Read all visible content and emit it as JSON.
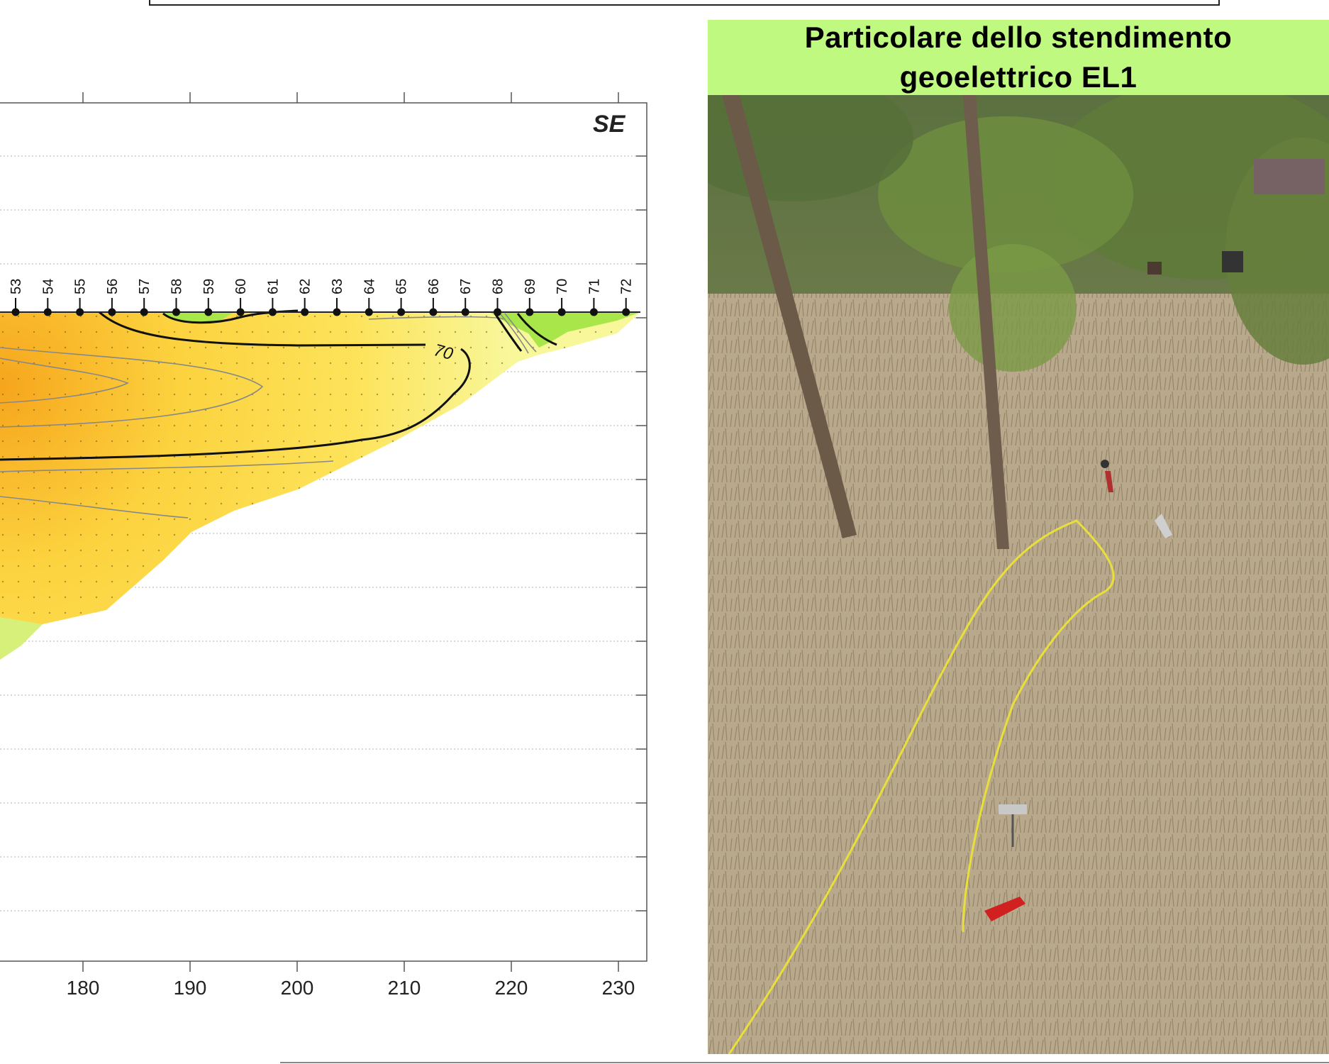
{
  "section": {
    "orientation_label": "SE",
    "x_axis": {
      "ticks": [
        180,
        190,
        200,
        210,
        220,
        230
      ]
    },
    "electrodes": [
      "53",
      "54",
      "55",
      "56",
      "57",
      "58",
      "59",
      "60",
      "61",
      "62",
      "63",
      "64",
      "65",
      "66",
      "67",
      "68",
      "69",
      "70",
      "71",
      "72"
    ],
    "contour_label": "70",
    "colors": {
      "high_resistivity": "#f6a51c",
      "mid_resistivity": "#fde35a",
      "low_mid_resistivity": "#f8f79a",
      "low_resistivity": "#a8e64a",
      "contour_major": "#111111",
      "contour_minor": "#888888",
      "grid": "#b0b0b0"
    }
  },
  "photo": {
    "title": "Particolare dello stendimento geoelettrico EL1"
  }
}
